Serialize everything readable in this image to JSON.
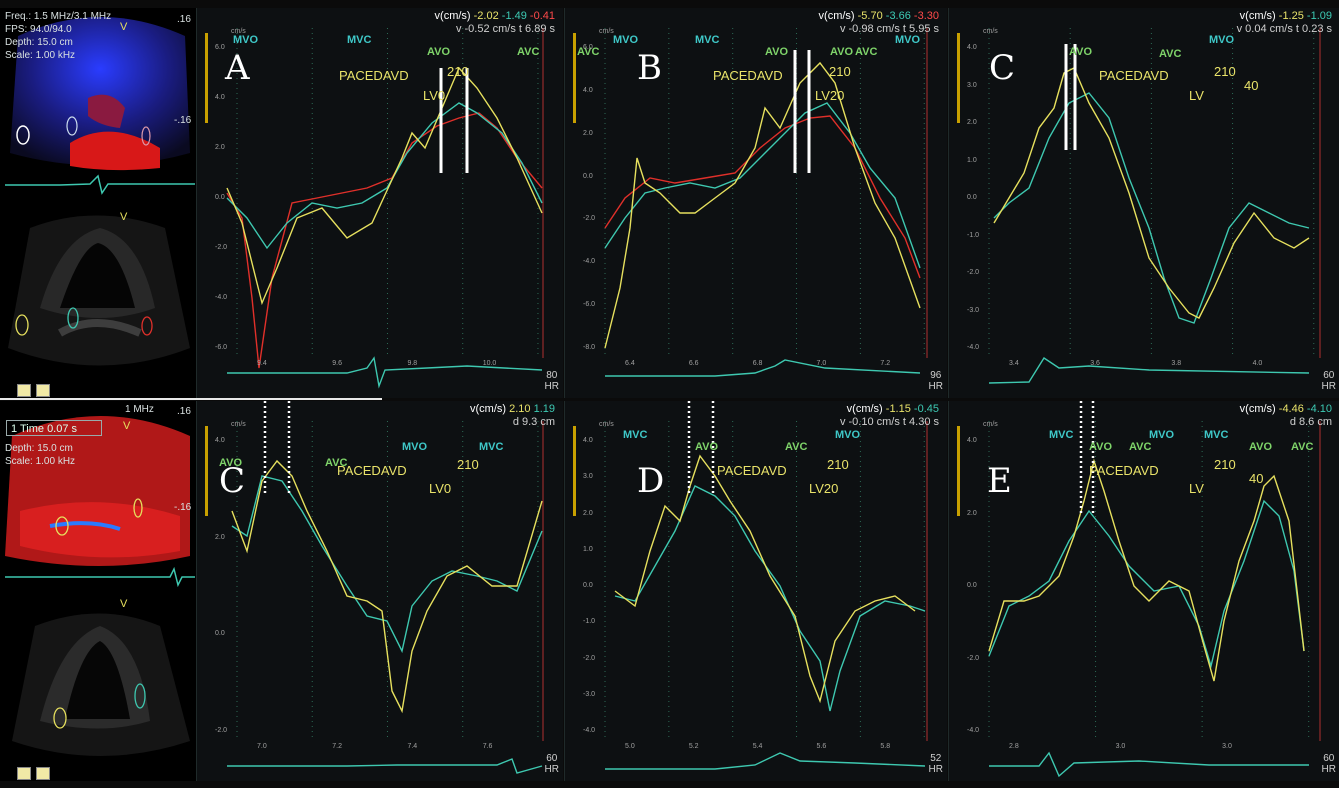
{
  "panels": [
    {
      "label": "A",
      "header_line1": "v(cm/s)",
      "header_values": [
        "-2.02",
        "-1.49",
        "-0.41"
      ],
      "header_line2": "v -0.52 cm/s",
      "header_time": "t 6.89 s",
      "events": [
        "MVO",
        "MVC",
        "AVO",
        "AVC"
      ],
      "pacing": "PACEDAVD",
      "delay": "210",
      "lv": "LV0",
      "hr": "80",
      "x_ticks": [
        "9.4",
        "9.6",
        "9.8",
        "10.0"
      ],
      "y_ticks": [
        "6.0",
        "4.0",
        "2.0",
        "0.0",
        "-2.0",
        "-4.0",
        "-6.0"
      ]
    },
    {
      "label": "B",
      "header_line1": "v(cm/s)",
      "header_values": [
        "-5.70",
        "-3.66",
        "-3.30"
      ],
      "header_line2": "v -0.98 cm/s",
      "header_time": "t 5.95 s",
      "events": [
        "AVC",
        "MVO",
        "MVC",
        "AVO",
        "AVO",
        "AVC",
        "MVO"
      ],
      "pacing": "PACEDAVD",
      "delay": "210",
      "lv": "LV20",
      "hr": "96",
      "x_ticks": [
        "6.4",
        "6.6",
        "6.8",
        "7.0",
        "7.2"
      ],
      "y_ticks": [
        "6.0",
        "4.0",
        "2.0",
        "0.0",
        "-2.0",
        "-4.0",
        "-6.0",
        "-8.0"
      ]
    },
    {
      "label": "C",
      "header_line1": "v(cm/s)",
      "header_values": [
        "-1.25",
        "-1.09"
      ],
      "header_line2": "v 0.04 cm/s",
      "header_time": "t 0.23 s",
      "events": [
        "AVO",
        "AVC",
        "MVO"
      ],
      "pacing": "PACEDAVD",
      "delay": "210",
      "lv": "LV",
      "extra": "40",
      "hr": "60",
      "x_ticks": [
        "3.4",
        "3.6",
        "3.8",
        "4.0"
      ],
      "y_ticks": [
        "4.0",
        "3.0",
        "2.0",
        "1.0",
        "0.0",
        "-1.0",
        "-2.0",
        "-3.0",
        "-4.0"
      ]
    },
    {
      "label": "C",
      "header_line1": "v(cm/s)",
      "header_values": [
        "2.10",
        "1.19"
      ],
      "header_line2": "d 9.3 cm",
      "header_time": "",
      "events": [
        "AVO",
        "AVC",
        "MVO",
        "MVC"
      ],
      "pacing": "PACEDAVD",
      "delay": "210",
      "lv": "LV0",
      "hr": "60",
      "x_ticks": [
        "7.0",
        "7.2",
        "7.4",
        "7.6"
      ],
      "y_ticks": [
        "4.0",
        "2.0",
        "0.0",
        "-2.0"
      ]
    },
    {
      "label": "D",
      "header_line1": "v(cm/s)",
      "header_values": [
        "-1.15",
        "-0.45"
      ],
      "header_line2": "v -0.10 cm/s",
      "header_time": "t 4.30 s",
      "events": [
        "MVC",
        "AVO",
        "AVC",
        "MVO"
      ],
      "pacing": "PACEDAVD",
      "delay": "210",
      "lv": "LV20",
      "hr": "52",
      "x_ticks": [
        "5.0",
        "5.2",
        "5.4",
        "5.6",
        "5.8"
      ],
      "y_ticks": [
        "4.0",
        "3.0",
        "2.0",
        "1.0",
        "0.0",
        "-1.0",
        "-2.0",
        "-3.0",
        "-4.0"
      ]
    },
    {
      "label": "E",
      "header_line1": "v(cm/s)",
      "header_values": [
        "-4.46",
        "-4.10"
      ],
      "header_line2": "d 8.6 cm",
      "header_time": "",
      "events": [
        "MVC",
        "AVO",
        "AVC",
        "MVO",
        "MVC",
        "AVO",
        "AVC"
      ],
      "pacing": "PACEDAVD",
      "delay": "210",
      "lv": "LV",
      "extra": "40",
      "hr": "60",
      "x_ticks": [
        "2.8",
        "3.0",
        "3.0"
      ],
      "y_ticks": [
        "4.0",
        "2.0",
        "0.0",
        "-2.0",
        "-4.0"
      ]
    }
  ],
  "scanner_top": {
    "freq": "Freq.: 1.5 MHz/3.1 MHz",
    "fps": "FPS: 94.0/94.0",
    "depth": "Depth: 15.0 cm",
    "scale": "Scale: 1.00 kHz",
    "scale_top": ".16",
    "scale_bottom": "-.16"
  },
  "scanner_bottom": {
    "freq": "1 MHz",
    "timebox": "1 Time 0.07 s",
    "depth": "Depth: 15.0 cm",
    "scale": "Scale: 1.00 kHz",
    "scale_top": ".16",
    "scale_bottom": "-.16"
  },
  "hr_unit": "HR",
  "colors": {
    "yellow": "#e6e05e",
    "teal": "#3ec8b0",
    "red": "#e0302a",
    "grid": "#2d6a55",
    "marker": "#ffffff"
  }
}
